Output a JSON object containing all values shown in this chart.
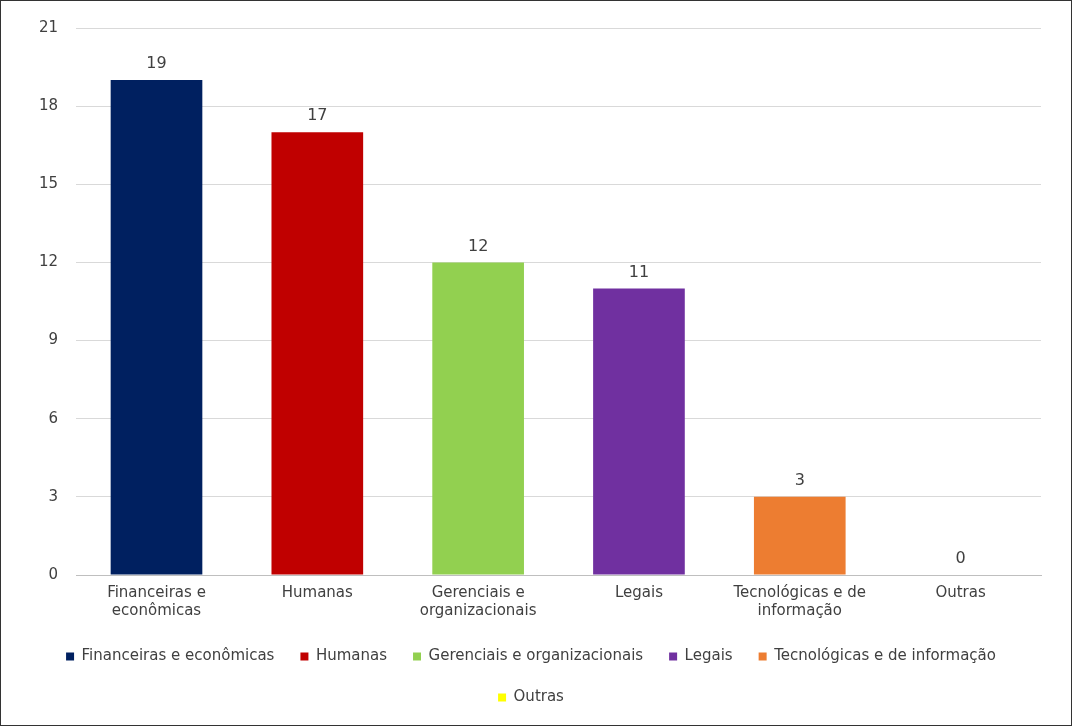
{
  "chart_data": {
    "type": "bar",
    "stacked": true,
    "categories": [
      "Financeiras e econômicas",
      "Humanas",
      "Gerenciais e organizacionais",
      "Legais",
      "Tecnológicas e de informação",
      "Outras"
    ],
    "series": [
      {
        "name": "Financeiras e econômicas",
        "color": "#002060",
        "values": [
          19,
          null,
          null,
          null,
          null,
          null
        ]
      },
      {
        "name": "Humanas",
        "color": "#c00000",
        "values": [
          null,
          17,
          null,
          null,
          null,
          null
        ]
      },
      {
        "name": "Gerenciais e organizacionais",
        "color": "#92d050",
        "values": [
          null,
          null,
          12,
          null,
          null,
          null
        ]
      },
      {
        "name": "Legais",
        "color": "#7030a0",
        "values": [
          null,
          null,
          null,
          11,
          null,
          null
        ]
      },
      {
        "name": "Tecnológicas e de informação",
        "color": "#ed7d31",
        "values": [
          null,
          null,
          null,
          null,
          3,
          null
        ]
      },
      {
        "name": "Outras",
        "color": "#ffff00",
        "values": [
          null,
          null,
          null,
          null,
          null,
          0
        ]
      }
    ],
    "ylim": [
      0,
      21
    ],
    "yticks": [
      0,
      3,
      6,
      9,
      12,
      15,
      18,
      21
    ],
    "grid": "y",
    "legend": "bottom",
    "data_labels": true
  }
}
